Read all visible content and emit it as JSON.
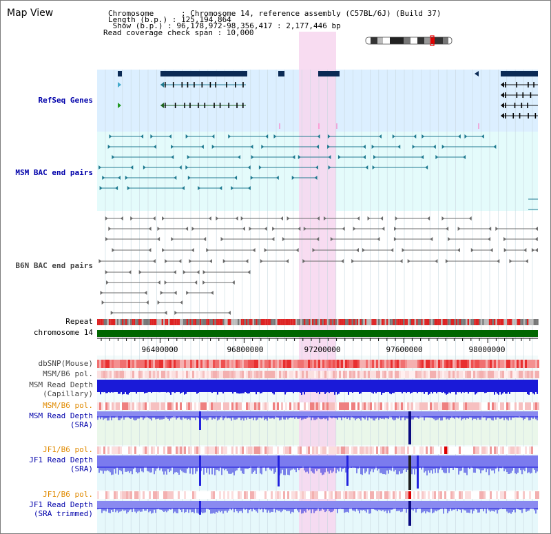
{
  "page": {
    "title": "Map View"
  },
  "info": {
    "line1": "Chromosome      : Chromosome 14, reference assembly (C57BL/6J) (Build 37)",
    "line2": "Length (b.p.) : 125,194,864",
    "line3": " Show (b.p.) : 96,178,972-98,356,417 : 2,177,446 bp",
    "line4": "Read coverage check span : 10,000"
  },
  "tracks": {
    "refseq": "RefSeq Genes",
    "msm_bac": "MSM BAC end pairs",
    "b6n_bac": "B6N BAC end pairs",
    "repeat": "Repeat",
    "chromosome": "chromosome 14",
    "dbsnp": "dbSNP(Mouse)",
    "msm_b6_pol_1": "MSM/B6 pol.",
    "msm_depth_cap_1": "MSM Read Depth",
    "msm_depth_cap_2": "(Capillary)",
    "msm_b6_pol_2": "MSM/B6 pol.",
    "msm_depth_sra_1": "MSM Read Depth",
    "msm_depth_sra_2": "(SRA)",
    "jf1_b6_pol_1": "JF1/B6 pol.",
    "jf1_depth_sra_1": "JF1 Read Depth",
    "jf1_depth_sra_2": "(SRA)",
    "jf1_b6_pol_2": "JF1/B6 pol.",
    "jf1_depth_trim_1": "JF1 Read Depth",
    "jf1_depth_trim_2": "(SRA trimmed)"
  },
  "axis": {
    "ticks": [
      "96400000",
      "96800000",
      "97200000",
      "97600000",
      "98000000"
    ]
  },
  "colors": {
    "refseq_bg": "#dcefff",
    "msm_bac_bg": "#e4fbfb",
    "highlight": "#f7d6ef",
    "chromosome_bar": "#006600",
    "gene_dark": "#0a2a55",
    "msm_bac_line": "#1f7a90",
    "b6n_line": "#6b6b6b",
    "depth_blue": "#2222dd",
    "depth_light": "#8a8af0",
    "snp_red": "#e83030",
    "label_blue": "#0000aa",
    "label_orange": "#e08a00"
  }
}
